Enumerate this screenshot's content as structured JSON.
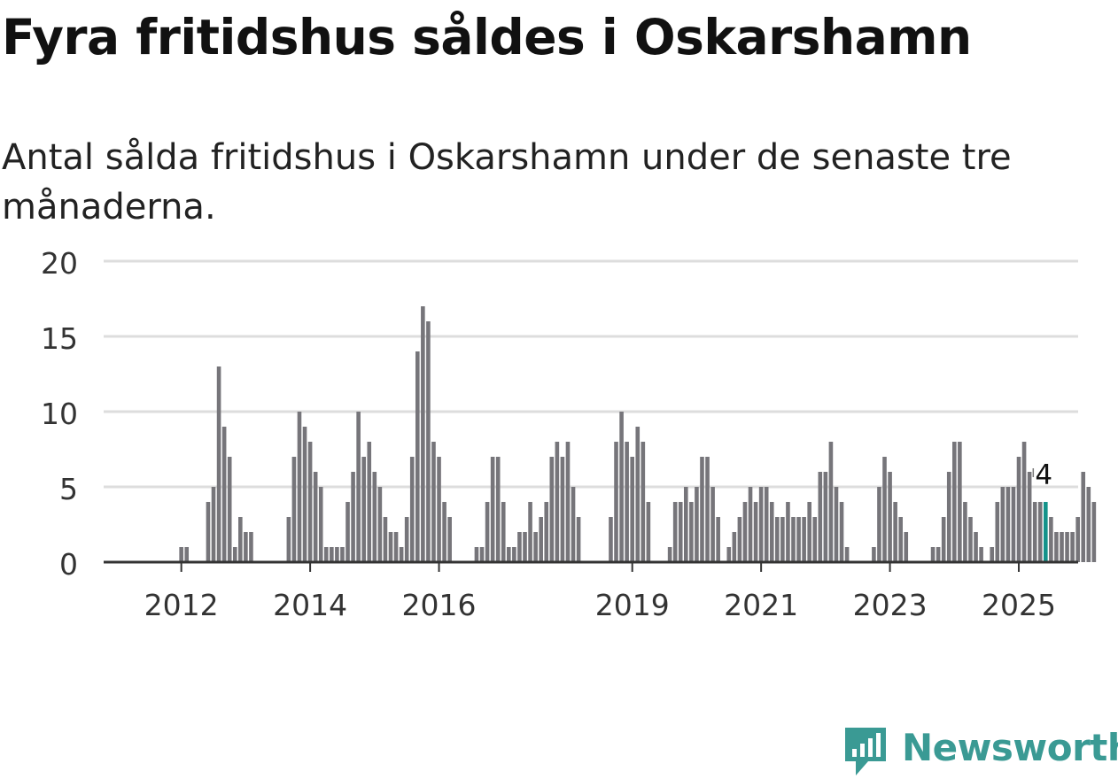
{
  "title": "Fyra fritidshus såldes i Oskarshamn",
  "subtitle": "Antal sålda fritidshus i Oskarshamn under de senaste tre månaderna.",
  "brand": {
    "name": "Newsworthy",
    "icon": "newsworthy-logo-icon",
    "color": "#3a9a94"
  },
  "colors": {
    "bar": "#76757a",
    "highlight": "#14938a",
    "grid": "#dddddd",
    "axis": "#333333"
  },
  "chart_data": {
    "type": "bar",
    "title": "Fyra fritidshus såldes i Oskarshamn",
    "subtitle": "Antal sålda fritidshus i Oskarshamn under de senaste tre månaderna.",
    "xlabel": "",
    "ylabel": "",
    "ylim": [
      0,
      20
    ],
    "yticks": [
      0,
      5,
      10,
      15,
      20
    ],
    "grid": true,
    "x_ticks": [
      {
        "label": "2012",
        "index": 6
      },
      {
        "label": "2014",
        "index": 30
      },
      {
        "label": "2016",
        "index": 54
      },
      {
        "label": "2019",
        "index": 90
      },
      {
        "label": "2021",
        "index": 114
      },
      {
        "label": "2023",
        "index": 138
      },
      {
        "label": "2025",
        "index": 162
      }
    ],
    "highlight": {
      "index": 167,
      "label": "4"
    },
    "values": [
      0,
      0,
      0,
      0,
      0,
      0,
      1,
      1,
      0,
      0,
      0,
      4,
      5,
      13,
      9,
      7,
      1,
      3,
      2,
      2,
      0,
      0,
      0,
      0,
      0,
      0,
      3,
      7,
      10,
      9,
      8,
      6,
      5,
      1,
      1,
      1,
      1,
      4,
      6,
      10,
      7,
      8,
      6,
      5,
      3,
      2,
      2,
      1,
      3,
      7,
      14,
      17,
      16,
      8,
      7,
      4,
      3,
      0,
      0,
      0,
      0,
      1,
      1,
      4,
      7,
      7,
      4,
      1,
      1,
      2,
      2,
      4,
      2,
      3,
      4,
      7,
      8,
      7,
      8,
      5,
      3,
      0,
      0,
      0,
      0,
      0,
      3,
      8,
      10,
      8,
      7,
      9,
      8,
      4,
      0,
      0,
      0,
      1,
      4,
      4,
      5,
      4,
      5,
      7,
      7,
      5,
      3,
      0,
      1,
      2,
      3,
      4,
      5,
      4,
      5,
      5,
      4,
      3,
      3,
      4,
      3,
      3,
      3,
      4,
      3,
      6,
      6,
      8,
      5,
      4,
      1,
      0,
      0,
      0,
      0,
      1,
      5,
      7,
      6,
      4,
      3,
      2,
      0,
      0,
      0,
      0,
      1,
      1,
      3,
      6,
      8,
      8,
      4,
      3,
      2,
      1,
      0,
      1,
      4,
      5,
      5,
      5,
      7,
      8,
      6,
      4,
      4,
      4,
      3,
      2,
      2,
      2,
      2,
      3,
      6,
      5,
      4
    ]
  }
}
